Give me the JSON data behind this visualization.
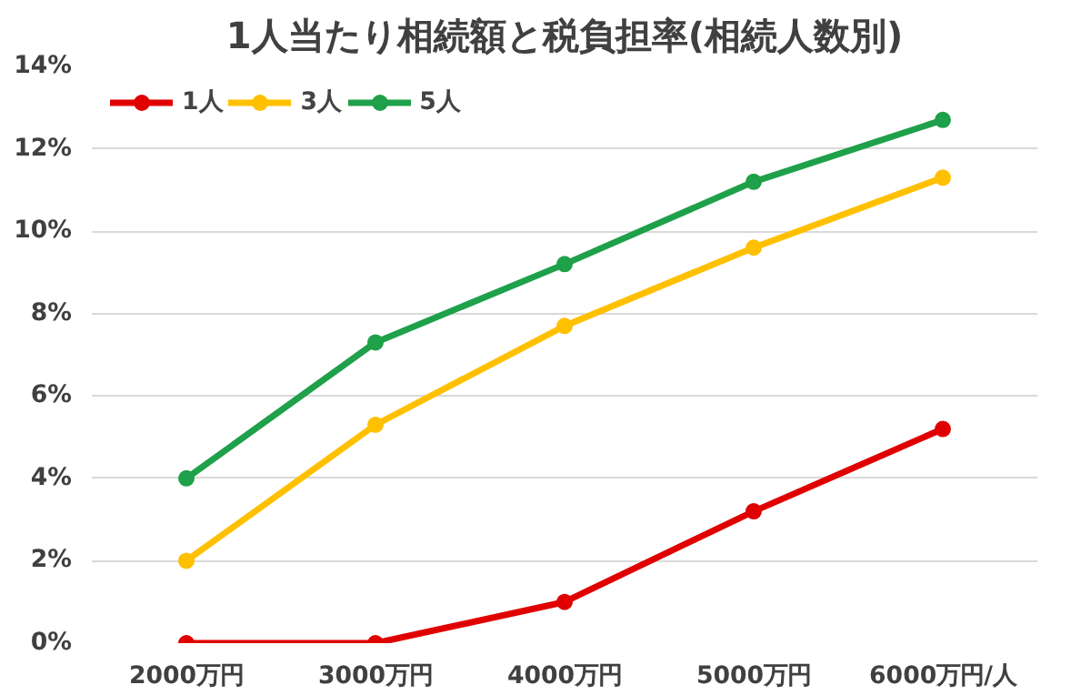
{
  "chart_data": {
    "type": "line",
    "title": "1人当たり相続額と税負担率(相続人数別)",
    "categories": [
      "2000万円",
      "3000万円",
      "4000万円",
      "5000万円",
      "6000万円/人"
    ],
    "series": [
      {
        "name": "1人",
        "color": "#e00000",
        "values": [
          0,
          0,
          1.0,
          3.2,
          5.2
        ]
      },
      {
        "name": "3人",
        "color": "#ffc000",
        "values": [
          2.0,
          5.3,
          7.7,
          9.6,
          11.3
        ]
      },
      {
        "name": "5人",
        "color": "#1fa04a",
        "values": [
          4.0,
          7.3,
          9.2,
          11.2,
          12.7
        ]
      }
    ],
    "ylim": [
      0,
      14
    ],
    "yticks": [
      {
        "value": 0,
        "label": "0%"
      },
      {
        "value": 2,
        "label": "2%"
      },
      {
        "value": 4,
        "label": "4%"
      },
      {
        "value": 6,
        "label": "6%"
      },
      {
        "value": 8,
        "label": "8%"
      },
      {
        "value": 10,
        "label": "10%"
      },
      {
        "value": 12,
        "label": "12%"
      },
      {
        "value": 14,
        "label": "14%"
      }
    ],
    "grid": "y",
    "legend": "top left",
    "marker": "circle",
    "line_style": "solid"
  }
}
